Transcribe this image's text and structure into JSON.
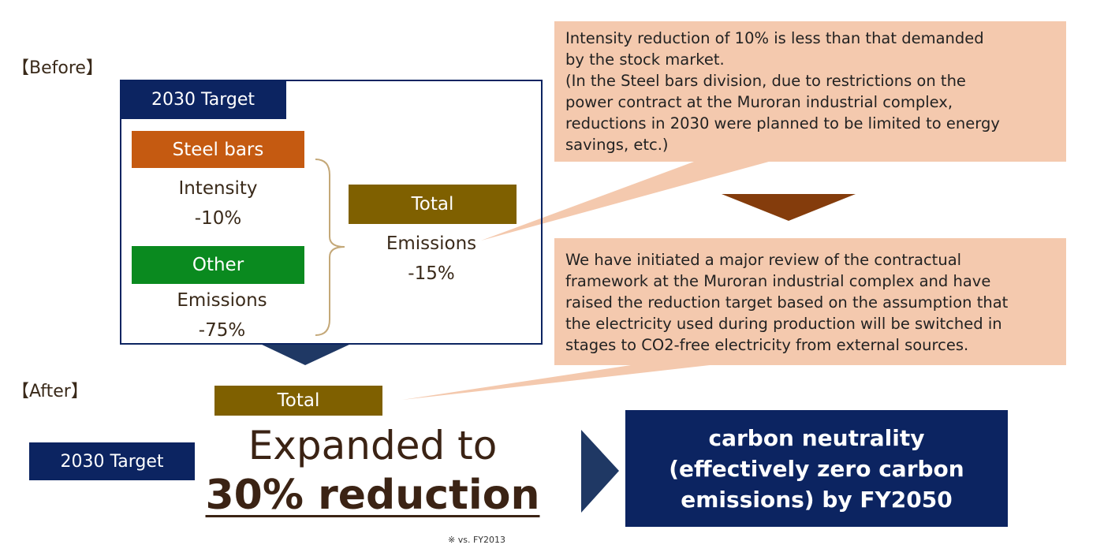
{
  "before": {
    "label": "【Before】",
    "target": "2030 Target",
    "steel_bars": {
      "label": "Steel bars",
      "metric": "Intensity",
      "value": "-10%"
    },
    "other": {
      "label": "Other",
      "metric": "Emissions",
      "value": "-75%"
    },
    "total": {
      "label": "Total",
      "metric": "Emissions",
      "value": "-15%"
    }
  },
  "callouts": [
    [
      "Intensity reduction of 10% is less than that demanded",
      "by the stock market.",
      "(In the Steel bars division, due to restrictions on the",
      "power contract at the Muroran industrial complex,",
      "reductions in 2030 were planned to be limited to energy",
      "savings, etc.)"
    ],
    [
      "We have initiated a major review of the contractual",
      "framework at the Muroran industrial complex and have",
      "raised the reduction target based on the assumption that",
      "the electricity used during production will be switched in",
      "stages to CO2-free electricity from external sources."
    ]
  ],
  "after": {
    "label": "【After】",
    "target": "2030 Target",
    "total": "Total",
    "headline": "Expanded to",
    "reduction": "30% reduction",
    "note": "※ vs. FY2013",
    "goal": [
      "carbon neutrality",
      "(effectively zero carbon",
      "emissions) by FY2050"
    ]
  }
}
